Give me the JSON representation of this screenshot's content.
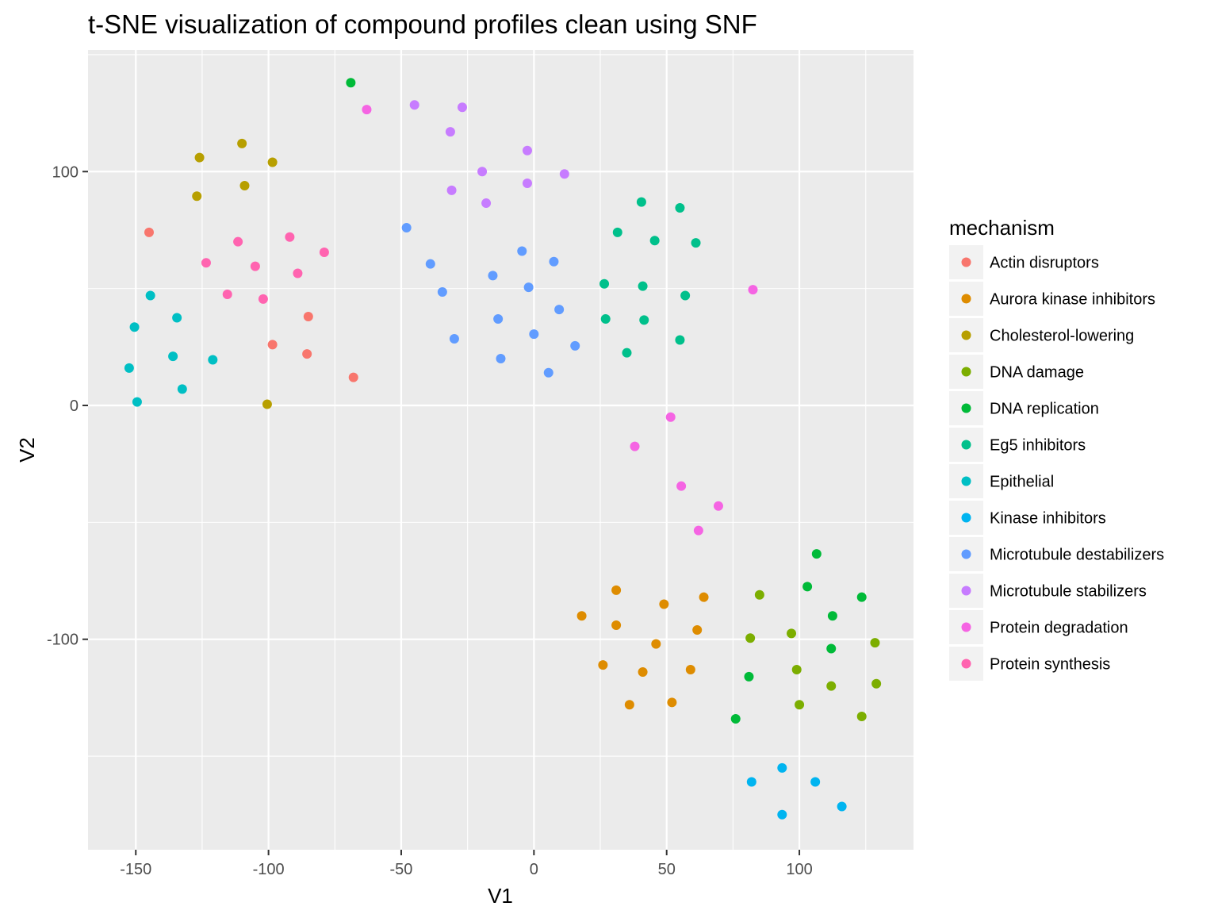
{
  "chart_data": {
    "type": "scatter",
    "title": "t-SNE visualization of compound profiles clean using SNF",
    "xlabel": "V1",
    "ylabel": "V2",
    "xlim": [
      -168,
      143
    ],
    "ylim": [
      -190,
      152
    ],
    "x_ticks": [
      -150,
      -100,
      -50,
      0,
      50,
      100
    ],
    "x_tick_labels": [
      "-150",
      "-100",
      "-50",
      "0",
      "50",
      "100"
    ],
    "y_ticks": [
      -100,
      0,
      100
    ],
    "y_tick_labels": [
      "-100",
      "0",
      "100"
    ],
    "grid": true,
    "legend_title": "mechanism",
    "legend_position": "right",
    "series": [
      {
        "name": "Actin disruptors",
        "color": "#F8766D",
        "points": [
          [
            -145,
            74
          ],
          [
            -85,
            38
          ],
          [
            -98.5,
            26
          ],
          [
            -85.5,
            22
          ],
          [
            -68,
            12
          ]
        ]
      },
      {
        "name": "Aurora kinase inhibitors",
        "color": "#DE8C00",
        "points": [
          [
            31,
            -79
          ],
          [
            18,
            -90
          ],
          [
            49,
            -85
          ],
          [
            64,
            -82
          ],
          [
            31,
            -94
          ],
          [
            61.5,
            -96
          ],
          [
            46,
            -102
          ],
          [
            26,
            -111
          ],
          [
            41,
            -114
          ],
          [
            59,
            -113
          ],
          [
            36,
            -128
          ],
          [
            52,
            -127
          ]
        ]
      },
      {
        "name": "Cholesterol-lowering",
        "color": "#B79F00",
        "points": [
          [
            -126,
            106
          ],
          [
            -110,
            112
          ],
          [
            -98.5,
            104
          ],
          [
            -127,
            89.5
          ],
          [
            -109,
            94
          ],
          [
            -100.5,
            0.5
          ]
        ]
      },
      {
        "name": "DNA damage",
        "color": "#7CAE00",
        "points": [
          [
            85,
            -81
          ],
          [
            81.5,
            -99.5
          ],
          [
            97,
            -97.5
          ],
          [
            128.5,
            -101.5
          ],
          [
            99,
            -113
          ],
          [
            112,
            -120
          ],
          [
            129,
            -119
          ],
          [
            100,
            -128
          ],
          [
            123.5,
            -133
          ]
        ]
      },
      {
        "name": "DNA replication",
        "color": "#00BA38",
        "points": [
          [
            -69,
            138
          ],
          [
            106.5,
            -63.5
          ],
          [
            103,
            -77.5
          ],
          [
            123.5,
            -82
          ],
          [
            112.5,
            -90
          ],
          [
            112,
            -104
          ],
          [
            81,
            -116
          ],
          [
            76,
            -134
          ]
        ]
      },
      {
        "name": "Eg5 inhibitors",
        "color": "#00C08B",
        "points": [
          [
            40.5,
            87
          ],
          [
            55,
            84.5
          ],
          [
            31.5,
            74
          ],
          [
            45.5,
            70.5
          ],
          [
            61,
            69.5
          ],
          [
            26.5,
            52
          ],
          [
            41,
            51
          ],
          [
            57,
            47
          ],
          [
            27,
            37
          ],
          [
            41.5,
            36.5
          ],
          [
            55,
            28
          ],
          [
            35,
            22.5
          ]
        ]
      },
      {
        "name": "Epithelial",
        "color": "#00BFC4",
        "points": [
          [
            -144.5,
            47
          ],
          [
            -150.5,
            33.5
          ],
          [
            -134.5,
            37.5
          ],
          [
            -136,
            21
          ],
          [
            -121,
            19.5
          ],
          [
            -152.5,
            16
          ],
          [
            -132.5,
            7
          ],
          [
            -149.5,
            1.5
          ]
        ]
      },
      {
        "name": "Kinase inhibitors",
        "color": "#00B4F0",
        "points": [
          [
            93.5,
            -155
          ],
          [
            82,
            -161
          ],
          [
            106,
            -161
          ],
          [
            116,
            -171.5
          ],
          [
            93.5,
            -175
          ]
        ]
      },
      {
        "name": "Microtubule destabilizers",
        "color": "#619CFF",
        "points": [
          [
            -48,
            76
          ],
          [
            -39,
            60.5
          ],
          [
            -4.5,
            66
          ],
          [
            7.5,
            61.5
          ],
          [
            -15.5,
            55.5
          ],
          [
            -34.5,
            48.5
          ],
          [
            -2,
            50.5
          ],
          [
            9.5,
            41
          ],
          [
            -13.5,
            37
          ],
          [
            0,
            30.5
          ],
          [
            -30,
            28.5
          ],
          [
            15.5,
            25.5
          ],
          [
            -12.5,
            20
          ],
          [
            5.5,
            14
          ]
        ]
      },
      {
        "name": "Microtubule stabilizers",
        "color": "#C77CFF",
        "points": [
          [
            -45,
            128.5
          ],
          [
            -27,
            127.5
          ],
          [
            -31.5,
            117
          ],
          [
            -2.5,
            109
          ],
          [
            -19.5,
            100
          ],
          [
            11.5,
            99
          ],
          [
            -2.5,
            95
          ],
          [
            -31,
            92
          ],
          [
            -18,
            86.5
          ]
        ]
      },
      {
        "name": "Protein degradation",
        "color": "#F564E3",
        "points": [
          [
            -63,
            126.5
          ],
          [
            82.5,
            49.5
          ],
          [
            51.5,
            -5
          ],
          [
            38,
            -17.5
          ],
          [
            55.5,
            -34.5
          ],
          [
            69.5,
            -43
          ],
          [
            62,
            -53.5
          ]
        ]
      },
      {
        "name": "Protein synthesis",
        "color": "#FF64B0",
        "points": [
          [
            -111.5,
            70
          ],
          [
            -92,
            72
          ],
          [
            -79,
            65.5
          ],
          [
            -123.5,
            61
          ],
          [
            -105,
            59.5
          ],
          [
            -89,
            56.5
          ],
          [
            -115.5,
            47.5
          ],
          [
            -102,
            45.5
          ]
        ]
      }
    ]
  }
}
